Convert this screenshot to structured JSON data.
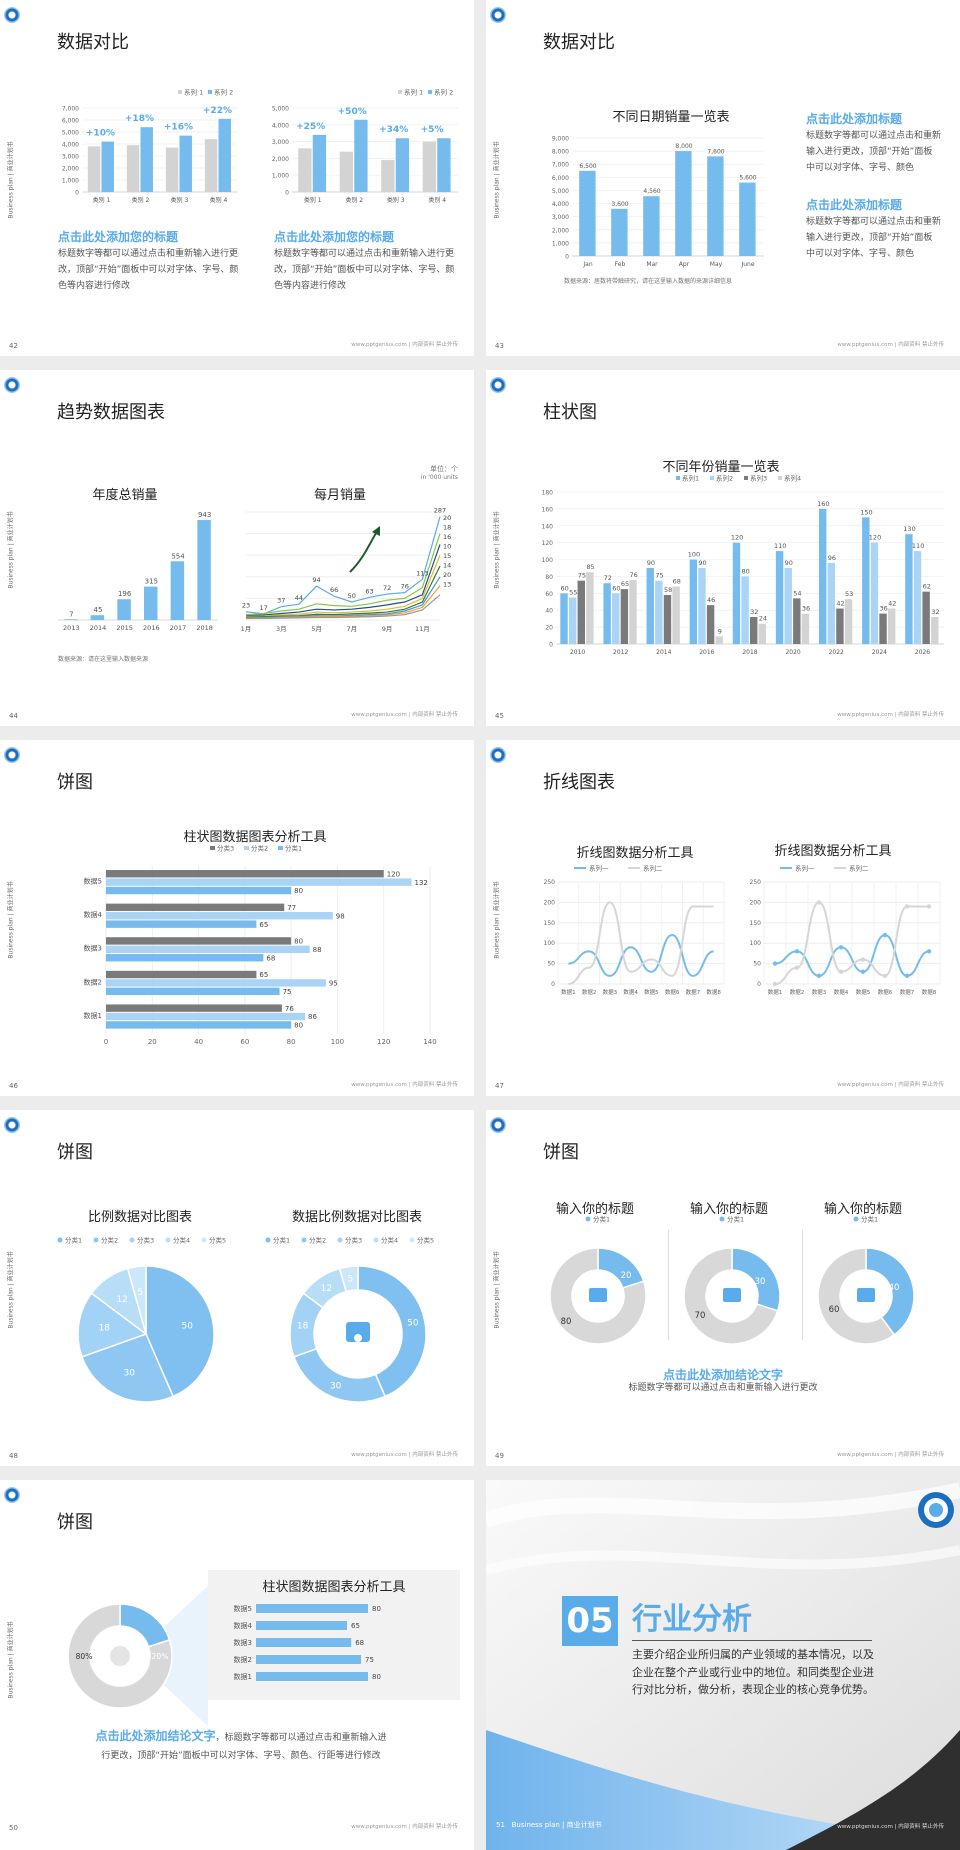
{
  "footer": "www.pptgenius.com | 内部资料 禁止外传",
  "side_text": "Business plan | 商业计划书",
  "colors": {
    "blue": "#76bbee",
    "blue_light": "#a9d4f5",
    "gray": "#d3d3d3",
    "gray_dark": "#7a7a7a",
    "accent": "#5aabea",
    "dark": "#383838"
  },
  "slides": {
    "s42": {
      "num": "42",
      "title": "数据对比",
      "sub1": "点击此处添加您的标题",
      "body1": "标题数字等都可以通过点击和重新输入进行更改，顶部“开始”面板中可以对字体、字号、颜色等内容进行修改",
      "sub2": "点击此处添加您的标题",
      "body2": "标题数字等都可以通过点击和重新输入进行更改，顶部“开始”面板中可以对字体、字号、颜色等内容进行修改"
    },
    "s43": {
      "num": "43",
      "title": "数据对比",
      "chart_title": "不同日期销量一览表",
      "note": "数据来源：居数将带触研究，请在这里输入数据的来源详细信息",
      "sub1": "点击此处添加标题",
      "body1": "标题数字等都可以通过点击和重新输入进行更改，顶部“开始”面板中可以对字体、字号、颜色",
      "sub2": "点击此处添加标题",
      "body2": "标题数字等都可以通过点击和重新输入进行更改，顶部“开始”面板中可以对字体、字号、颜色"
    },
    "s44": {
      "num": "44",
      "title": "趋势数据图表",
      "c1_title": "年度总销量",
      "c2_title": "每月销量",
      "unit1": "单位：个",
      "unit2": "in '000 units",
      "note": "数据来源：请在这里输入数据来源"
    },
    "s45": {
      "num": "45",
      "title": "柱状图",
      "chart_title": "不同年份销量一览表"
    },
    "s46": {
      "num": "46",
      "title": "饼图",
      "chart_title": "柱状图数据图表分析工具"
    },
    "s47": {
      "num": "47",
      "title": "折线图表",
      "c1_title": "折线图数据分析工具",
      "c2_title": "折线图数据分析工具"
    },
    "s48": {
      "num": "48",
      "title": "饼图",
      "c1_title": "比例数据对比图表",
      "c2_title": "数据比例数据对比图表"
    },
    "s49": {
      "num": "49",
      "title": "饼图",
      "col_title": "输入你的标题",
      "legend": "分类1",
      "sub": "点击此处添加结论文字",
      "body": "标题数字等都可以通过点击和重新输入进行更改"
    },
    "s50": {
      "num": "50",
      "title": "饼图",
      "chart_title": "柱状图数据图表分析工具",
      "donut_big": "80%",
      "donut_small": "20%",
      "sub": "点击此处添加结论文字",
      "body_a": "，标题数字等都可以通过点击和重新输入进",
      "body_b": "行更改，顶部“开始”面板中可以对字体、字号、颜色、行距等进行修改"
    },
    "s51": {
      "num": "51",
      "badge": "05",
      "title": "行业分析",
      "body": "主要介绍企业所归属的产业领域的基本情况，以及企业在整个产业或行业中的地位。和同类型企业进行对比分析，做分析，表现企业的核心竞争优势。",
      "foot": "Business plan | 商业计划书"
    }
  },
  "chart_data": [
    {
      "id": "s42a",
      "type": "bar",
      "categories": [
        "类别 1",
        "类别 2",
        "类别 3",
        "类别 4"
      ],
      "series": [
        {
          "name": "系列 1",
          "values": [
            3800,
            3900,
            3700,
            4400
          ]
        },
        {
          "name": "系列 2",
          "values": [
            4200,
            5400,
            4700,
            6100
          ]
        }
      ],
      "ylim": [
        0,
        7000
      ],
      "yticks": [
        0,
        1000,
        2000,
        3000,
        4000,
        5000,
        6000,
        7000
      ],
      "yticklabels": [
        "0",
        "1,000",
        "2,000",
        "3,000",
        "4,000",
        "5,000",
        "6,000",
        "7,000"
      ],
      "annotations": [
        "+10%",
        "+18%",
        "+16%",
        "+22%"
      ]
    },
    {
      "id": "s42b",
      "type": "bar",
      "categories": [
        "类别 1",
        "类别 2",
        "类别 3",
        "类别 4"
      ],
      "series": [
        {
          "name": "系列 1",
          "values": [
            2600,
            2400,
            1900,
            3000
          ]
        },
        {
          "name": "系列 2",
          "values": [
            3400,
            4300,
            3200,
            3200
          ]
        }
      ],
      "ylim": [
        0,
        5000
      ],
      "yticks": [
        0,
        1000,
        2000,
        3000,
        4000,
        5000
      ],
      "yticklabels": [
        "0",
        "1,000",
        "2,000",
        "3,000",
        "4,000",
        "5,000"
      ],
      "annotations": [
        "+25%",
        "+50%",
        "+34%",
        "+5%"
      ]
    },
    {
      "id": "s43",
      "type": "bar",
      "categories": [
        "Jan",
        "Feb",
        "Mar",
        "Apr",
        "May",
        "June"
      ],
      "values": [
        6500,
        3600,
        4560,
        8000,
        7600,
        5600
      ],
      "labels": [
        "6,500",
        "3,600",
        "4,560",
        "8,000",
        "7,600",
        "5,600"
      ],
      "ylim": [
        0,
        9000
      ],
      "yticks": [
        0,
        1000,
        2000,
        3000,
        4000,
        5000,
        6000,
        7000,
        8000,
        9000
      ],
      "yticklabels": [
        "0",
        "1,000",
        "2,000",
        "3,000",
        "4,000",
        "5,000",
        "6,000",
        "7,000",
        "8,000",
        "9,000"
      ]
    },
    {
      "id": "s44a",
      "type": "bar",
      "categories": [
        "2013",
        "2014",
        "2015",
        "2016",
        "2017",
        "2018"
      ],
      "values": [
        7,
        45,
        196,
        315,
        554,
        943
      ],
      "ylim": [
        0,
        1000
      ]
    },
    {
      "id": "s44b",
      "type": "line",
      "x": [
        "1月",
        "2月",
        "3月",
        "4月",
        "5月",
        "6月",
        "7月",
        "8月",
        "9月",
        "10月",
        "11月",
        "12月"
      ],
      "xticklabels": [
        "1月",
        "3月",
        "5月",
        "7月",
        "9月",
        "11月"
      ],
      "point_labels": [
        23,
        17,
        37,
        44,
        94,
        66,
        50,
        63,
        72,
        76,
        113,
        287
      ],
      "series": [
        {
          "values": [
            23,
            17,
            37,
            44,
            94,
            66,
            50,
            63,
            72,
            76,
            113,
            287
          ],
          "end_label": "20"
        },
        {
          "values": [
            15,
            18,
            25,
            30,
            45,
            40,
            38,
            45,
            55,
            60,
            90,
            240
          ],
          "end_label": "18"
        },
        {
          "values": [
            12,
            14,
            18,
            22,
            30,
            28,
            30,
            35,
            42,
            50,
            70,
            210
          ],
          "end_label": "16"
        },
        {
          "values": [
            10,
            11,
            14,
            16,
            22,
            20,
            22,
            25,
            30,
            38,
            60,
            180
          ],
          "end_label": "10"
        },
        {
          "values": [
            8,
            9,
            11,
            12,
            16,
            15,
            17,
            19,
            22,
            30,
            50,
            150
          ],
          "end_label": "15"
        },
        {
          "values": [
            6,
            7,
            9,
            10,
            12,
            11,
            13,
            15,
            17,
            25,
            42,
            120
          ],
          "end_label": "14"
        },
        {
          "values": [
            5,
            5,
            7,
            8,
            9,
            9,
            10,
            12,
            14,
            20,
            35,
            95
          ],
          "end_label": "20"
        },
        {
          "values": [
            4,
            4,
            5,
            6,
            7,
            7,
            8,
            9,
            11,
            15,
            28,
            70
          ],
          "end_label": "13"
        }
      ],
      "ylim": [
        0,
        300
      ]
    },
    {
      "id": "s45",
      "type": "bar",
      "categories": [
        "2010",
        "2012",
        "2014",
        "2016",
        "2018",
        "2020",
        "2022",
        "2024",
        "2026"
      ],
      "series": [
        {
          "name": "系列1",
          "values": [
            60,
            72,
            90,
            100,
            120,
            110,
            160,
            150,
            130
          ]
        },
        {
          "name": "系列2",
          "values": [
            55,
            60,
            75,
            90,
            80,
            90,
            96,
            120,
            110
          ]
        },
        {
          "name": "系列3",
          "values": [
            75,
            65,
            58,
            46,
            32,
            54,
            42,
            36,
            62
          ]
        },
        {
          "name": "系列4",
          "values": [
            85,
            76,
            68,
            9,
            24,
            36,
            53,
            42,
            32
          ]
        }
      ],
      "ylim": [
        0,
        180
      ],
      "yticks": [
        0,
        20,
        40,
        60,
        80,
        100,
        120,
        140,
        160,
        180
      ]
    },
    {
      "id": "s46",
      "type": "bar",
      "orientation": "horizontal",
      "categories": [
        "数据1",
        "数据2",
        "数据3",
        "数据4",
        "数据5"
      ],
      "series": [
        {
          "name": "分类3",
          "values": [
            76,
            65,
            80,
            77,
            120
          ]
        },
        {
          "name": "分类2",
          "values": [
            86,
            95,
            88,
            98,
            132
          ]
        },
        {
          "name": "分类1",
          "values": [
            80,
            75,
            68,
            65,
            80
          ]
        }
      ],
      "xlim": [
        0,
        140
      ],
      "xticks": [
        0,
        20,
        40,
        60,
        80,
        100,
        120,
        140
      ]
    },
    {
      "id": "s47a",
      "type": "line",
      "categories": [
        "数据1",
        "数据2",
        "数据3",
        "数据4",
        "数据5",
        "数据6",
        "数据7",
        "数据8"
      ],
      "series": [
        {
          "name": "系列一",
          "values": [
            50,
            80,
            20,
            90,
            30,
            120,
            20,
            80
          ]
        },
        {
          "name": "系列二",
          "values": [
            0,
            40,
            200,
            30,
            60,
            20,
            190,
            190
          ]
        }
      ],
      "ylim": [
        0,
        250
      ],
      "yticks": [
        0,
        50,
        100,
        150,
        200,
        250
      ]
    },
    {
      "id": "s47b",
      "type": "line",
      "categories": [
        "数据1",
        "数据2",
        "数据3",
        "数据4",
        "数据5",
        "数据6",
        "数据7",
        "数据8"
      ],
      "series": [
        {
          "name": "系列一",
          "values": [
            50,
            80,
            20,
            90,
            30,
            120,
            20,
            80
          ]
        },
        {
          "name": "系列二",
          "values": [
            0,
            40,
            200,
            30,
            60,
            20,
            190,
            190
          ]
        }
      ],
      "ylim": [
        0,
        250
      ],
      "yticks": [
        0,
        50,
        100,
        150,
        200,
        250
      ]
    },
    {
      "id": "s48a",
      "type": "pie",
      "labels": [
        "分类1",
        "分类2",
        "分类3",
        "分类4",
        "分类5"
      ],
      "values": [
        50,
        30,
        18,
        12,
        5
      ]
    },
    {
      "id": "s48b",
      "type": "pie",
      "donut": true,
      "labels": [
        "分类1",
        "分类2",
        "分类3",
        "分类4",
        "分类5"
      ],
      "values": [
        50,
        30,
        18,
        12,
        5
      ]
    },
    {
      "id": "s49",
      "type": "pie",
      "donut": true,
      "charts": [
        [
          20,
          80
        ],
        [
          30,
          70
        ],
        [
          40,
          60
        ]
      ]
    },
    {
      "id": "s50a",
      "type": "pie",
      "donut": true,
      "values": [
        20,
        80
      ]
    },
    {
      "id": "s50b",
      "type": "bar",
      "orientation": "horizontal",
      "categories": [
        "数据5",
        "数据4",
        "数据3",
        "数据2",
        "数据1"
      ],
      "values": [
        80,
        65,
        68,
        75,
        80
      ],
      "xlim": [
        0,
        100
      ]
    }
  ]
}
